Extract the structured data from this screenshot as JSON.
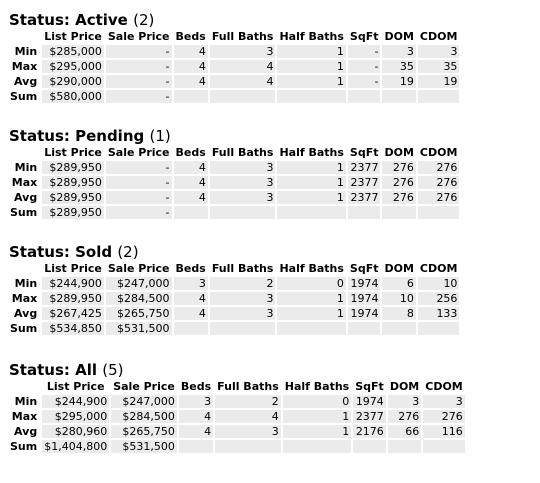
{
  "columns": [
    "List Price",
    "Sale Price",
    "Beds",
    "Full Baths",
    "Half Baths",
    "SqFt",
    "DOM",
    "CDOM"
  ],
  "sections": [
    {
      "label": "Status: Active",
      "count": "(2)",
      "rows": [
        {
          "label": "Min",
          "cells": [
            "$285,000",
            "-",
            "4",
            "3",
            "1",
            "-",
            "3",
            "3"
          ]
        },
        {
          "label": "Max",
          "cells": [
            "$295,000",
            "-",
            "4",
            "4",
            "1",
            "-",
            "35",
            "35"
          ]
        },
        {
          "label": "Avg",
          "cells": [
            "$290,000",
            "-",
            "4",
            "4",
            "1",
            "-",
            "19",
            "19"
          ]
        },
        {
          "label": "Sum",
          "cells": [
            "$580,000",
            "-",
            "",
            "",
            "",
            "",
            "",
            ""
          ]
        }
      ]
    },
    {
      "label": "Status: Pending",
      "count": "(1)",
      "rows": [
        {
          "label": "Min",
          "cells": [
            "$289,950",
            "-",
            "4",
            "3",
            "1",
            "2377",
            "276",
            "276"
          ]
        },
        {
          "label": "Max",
          "cells": [
            "$289,950",
            "-",
            "4",
            "3",
            "1",
            "2377",
            "276",
            "276"
          ]
        },
        {
          "label": "Avg",
          "cells": [
            "$289,950",
            "-",
            "4",
            "3",
            "1",
            "2377",
            "276",
            "276"
          ]
        },
        {
          "label": "Sum",
          "cells": [
            "$289,950",
            "-",
            "",
            "",
            "",
            "",
            "",
            ""
          ]
        }
      ]
    },
    {
      "label": "Status: Sold",
      "count": "(2)",
      "rows": [
        {
          "label": "Min",
          "cells": [
            "$244,900",
            "$247,000",
            "3",
            "2",
            "0",
            "1974",
            "6",
            "10"
          ]
        },
        {
          "label": "Max",
          "cells": [
            "$289,950",
            "$284,500",
            "4",
            "3",
            "1",
            "1974",
            "10",
            "256"
          ]
        },
        {
          "label": "Avg",
          "cells": [
            "$267,425",
            "$265,750",
            "4",
            "3",
            "1",
            "1974",
            "8",
            "133"
          ]
        },
        {
          "label": "Sum",
          "cells": [
            "$534,850",
            "$531,500",
            "",
            "",
            "",
            "",
            "",
            ""
          ]
        }
      ]
    },
    {
      "label": "Status: All",
      "count": "(5)",
      "rows": [
        {
          "label": "Min",
          "cells": [
            "$244,900",
            "$247,000",
            "3",
            "2",
            "0",
            "1974",
            "3",
            "3"
          ]
        },
        {
          "label": "Max",
          "cells": [
            "$295,000",
            "$284,500",
            "4",
            "4",
            "1",
            "2377",
            "276",
            "276"
          ]
        },
        {
          "label": "Avg",
          "cells": [
            "$280,960",
            "$265,750",
            "4",
            "3",
            "1",
            "2176",
            "66",
            "116"
          ]
        },
        {
          "label": "Sum",
          "cells": [
            "$1,404,800",
            "$531,500",
            "",
            "",
            "",
            "",
            "",
            ""
          ]
        }
      ]
    }
  ]
}
